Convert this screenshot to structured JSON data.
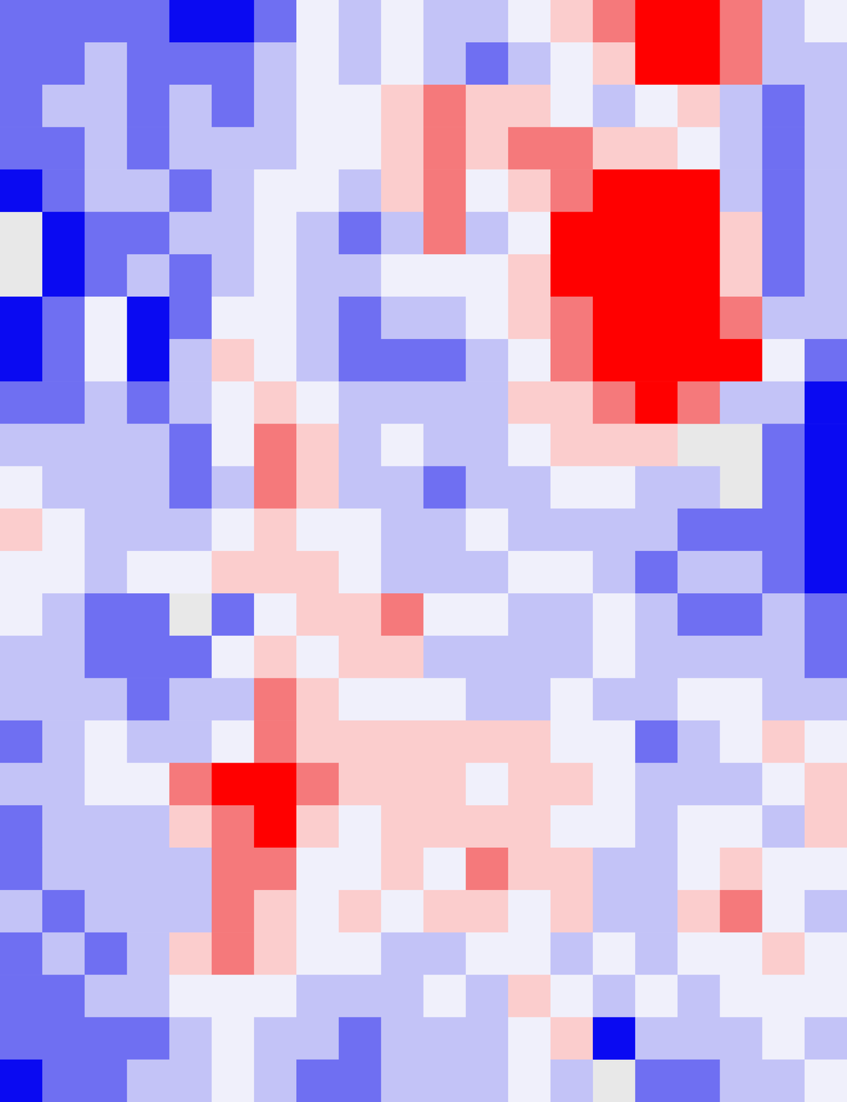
{
  "chart_data": {
    "type": "heatmap",
    "tick_labels": false,
    "clim": [
      -3,
      3
    ],
    "cells": [
      [
        -2,
        -2,
        -2,
        -2,
        -3,
        -3,
        -2,
        0,
        -1,
        0,
        -1,
        -1,
        0,
        1,
        2,
        3,
        3,
        2,
        -1,
        0
      ],
      [
        -2,
        -2,
        -1,
        -2,
        -2,
        -2,
        -1,
        0,
        -1,
        0,
        -1,
        -2,
        -1,
        0,
        1,
        3,
        3,
        2,
        -1,
        -1
      ],
      [
        -2,
        -1,
        -1,
        -2,
        -1,
        -2,
        -1,
        0,
        0,
        1,
        2,
        1,
        1,
        0,
        -1,
        0,
        1,
        -1,
        -2,
        -1
      ],
      [
        -2,
        -2,
        -1,
        -2,
        -1,
        -1,
        -1,
        0,
        0,
        1,
        2,
        1,
        2,
        2,
        1,
        1,
        0,
        -1,
        -2,
        -1
      ],
      [
        -3,
        -2,
        -1,
        -1,
        -2,
        -1,
        0,
        0,
        -1,
        1,
        2,
        0,
        1,
        2,
        3,
        3,
        3,
        -1,
        -2,
        -1
      ],
      [
        null,
        -3,
        -2,
        -2,
        -1,
        -1,
        0,
        -1,
        -2,
        -1,
        2,
        -1,
        0,
        3,
        3,
        3,
        3,
        1,
        -2,
        -1
      ],
      [
        null,
        -3,
        -2,
        -1,
        -2,
        -1,
        0,
        -1,
        -1,
        0,
        0,
        0,
        1,
        3,
        3,
        3,
        3,
        1,
        -2,
        -1
      ],
      [
        -3,
        -2,
        0,
        -3,
        -2,
        0,
        0,
        -1,
        -2,
        -1,
        -1,
        0,
        1,
        2,
        3,
        3,
        3,
        2,
        -1,
        -1
      ],
      [
        -3,
        -2,
        0,
        -3,
        -1,
        1,
        0,
        -1,
        -2,
        -2,
        -2,
        -1,
        0,
        2,
        3,
        3,
        3,
        3,
        0,
        -2
      ],
      [
        -2,
        -2,
        -1,
        -2,
        -1,
        0,
        1,
        0,
        -1,
        -1,
        -1,
        -1,
        1,
        1,
        2,
        3,
        2,
        -1,
        -1,
        -3
      ],
      [
        -1,
        -1,
        -1,
        -1,
        -2,
        0,
        2,
        1,
        -1,
        0,
        -1,
        -1,
        0,
        1,
        1,
        1,
        null,
        null,
        -2,
        -3
      ],
      [
        0,
        -1,
        -1,
        -1,
        -2,
        -1,
        2,
        1,
        -1,
        -1,
        -2,
        -1,
        -1,
        0,
        0,
        -1,
        -1,
        null,
        -2,
        -3
      ],
      [
        1,
        0,
        -1,
        -1,
        -1,
        0,
        1,
        0,
        0,
        -1,
        -1,
        0,
        -1,
        -1,
        -1,
        -1,
        -2,
        -2,
        -2,
        -3
      ],
      [
        0,
        0,
        -1,
        0,
        0,
        1,
        1,
        1,
        0,
        -1,
        -1,
        -1,
        0,
        0,
        -1,
        -2,
        -1,
        -1,
        -2,
        -3
      ],
      [
        0,
        -1,
        -2,
        -2,
        null,
        -2,
        0,
        1,
        1,
        2,
        0,
        0,
        -1,
        -1,
        0,
        -1,
        -2,
        -2,
        -1,
        -2
      ],
      [
        -1,
        -1,
        -2,
        -2,
        -2,
        0,
        1,
        0,
        1,
        1,
        -1,
        -1,
        -1,
        -1,
        0,
        -1,
        -1,
        -1,
        -1,
        -2
      ],
      [
        -1,
        -1,
        -1,
        -2,
        -1,
        -1,
        2,
        1,
        0,
        0,
        0,
        -1,
        -1,
        0,
        -1,
        -1,
        0,
        0,
        -1,
        -1
      ],
      [
        -2,
        -1,
        0,
        -1,
        -1,
        0,
        2,
        1,
        1,
        1,
        1,
        1,
        1,
        0,
        0,
        -2,
        -1,
        0,
        1,
        0
      ],
      [
        -1,
        -1,
        0,
        0,
        2,
        3,
        3,
        2,
        1,
        1,
        1,
        0,
        1,
        1,
        0,
        -1,
        -1,
        -1,
        0,
        1
      ],
      [
        -2,
        -1,
        -1,
        -1,
        1,
        2,
        3,
        1,
        0,
        1,
        1,
        1,
        1,
        0,
        0,
        -1,
        0,
        0,
        -1,
        1
      ],
      [
        -2,
        -1,
        -1,
        -1,
        -1,
        2,
        2,
        0,
        0,
        1,
        0,
        2,
        1,
        1,
        -1,
        -1,
        0,
        1,
        0,
        0
      ],
      [
        -1,
        -2,
        -1,
        -1,
        -1,
        2,
        1,
        0,
        1,
        0,
        1,
        1,
        0,
        1,
        -1,
        -1,
        1,
        2,
        0,
        -1
      ],
      [
        -2,
        -1,
        -2,
        -1,
        1,
        2,
        1,
        0,
        0,
        -1,
        -1,
        0,
        0,
        -1,
        0,
        -1,
        0,
        0,
        1,
        0
      ],
      [
        -2,
        -2,
        -1,
        -1,
        0,
        0,
        0,
        -1,
        -1,
        -1,
        0,
        -1,
        1,
        0,
        -1,
        0,
        -1,
        0,
        0,
        0
      ],
      [
        -2,
        -2,
        -2,
        -2,
        -1,
        0,
        -1,
        -1,
        -2,
        -1,
        -1,
        -1,
        0,
        1,
        -3,
        -1,
        -1,
        -1,
        0,
        -1
      ],
      [
        -3,
        -2,
        -2,
        -1,
        -1,
        0,
        -1,
        -2,
        -2,
        -1,
        -1,
        -1,
        0,
        -1,
        null,
        -2,
        -2,
        -1,
        -1,
        0
      ]
    ]
  }
}
